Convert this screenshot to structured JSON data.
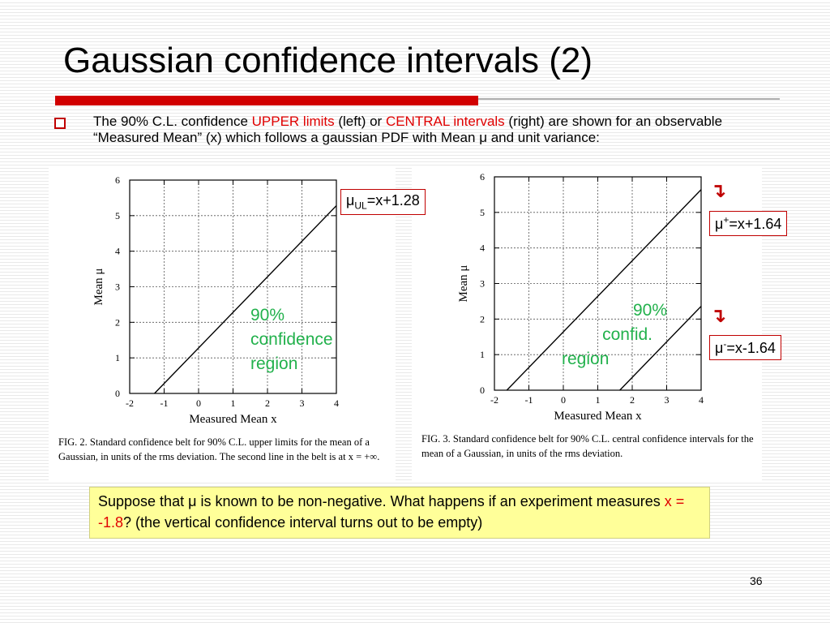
{
  "slide": {
    "title": "Gaussian confidence intervals (2)",
    "page_number": "36"
  },
  "intro": {
    "part1": "The 90% C.L. confidence ",
    "upper_limits": "UPPER limits",
    "part2": " (left) or ",
    "central_intervals": "CENTRAL intervals",
    "part3": " (right) are shown for an observable “Measured Mean” (x) which follows a gaussian PDF with Mean ",
    "mu": "μ",
    "part4": " and unit variance:"
  },
  "left_figure": {
    "equation": {
      "mu": "μ",
      "sub": "UL",
      "rest": "=x+1.28"
    },
    "region_lines": [
      "90%",
      "confidence",
      "region"
    ],
    "caption": "FIG. 2. Standard confidence belt for 90% C.L. upper limits for the mean of a Gaussian, in units of the rms deviation. The second line in the belt is at x = +∞."
  },
  "right_figure": {
    "equation_plus": {
      "mu": "μ",
      "sup": "+",
      "rest": "=x+1.64"
    },
    "equation_minus": {
      "mu": "μ",
      "sup": "-",
      "rest": "=x-1.64"
    },
    "arrow_glyph": "↴",
    "region_lines": [
      "90%",
      "confid.",
      "region"
    ],
    "caption": "FIG. 3. Standard confidence belt for 90% C.L. central confidence intervals for the mean of a Gaussian, in units of the rms deviation."
  },
  "note": {
    "part1": "Suppose that ",
    "mu": "μ",
    "part2": " is known to be non-negative. What happens if an experiment measures ",
    "x_value": "x = -1.8",
    "part3": "? (the vertical confidence interval turns out to be empty)"
  },
  "chart_data": [
    {
      "type": "line",
      "title": "",
      "xlabel": "Measured Mean x",
      "ylabel": "Mean μ",
      "xlim": [
        -2,
        4
      ],
      "ylim": [
        0,
        6
      ],
      "x_ticks": [
        "-2",
        "-1",
        "0",
        "1",
        "2",
        "3",
        "4"
      ],
      "y_ticks": [
        "0",
        "1",
        "2",
        "3",
        "4",
        "5",
        "6"
      ],
      "grid": true,
      "series": [
        {
          "name": "",
          "x": [
            -1.28,
            4
          ],
          "y": [
            0,
            5.28
          ]
        }
      ]
    },
    {
      "type": "line",
      "title": "",
      "xlabel": "Measured Mean x",
      "ylabel": "Mean μ",
      "xlim": [
        -2,
        4
      ],
      "ylim": [
        0,
        6
      ],
      "x_ticks": [
        "-2",
        "-1",
        "0",
        "1",
        "2",
        "3",
        "4"
      ],
      "y_ticks": [
        "0",
        "1",
        "2",
        "3",
        "4",
        "5",
        "6"
      ],
      "grid": true,
      "series": [
        {
          "name": "",
          "x": [
            -1.64,
            4
          ],
          "y": [
            0,
            5.64
          ]
        },
        {
          "name": "",
          "x": [
            1.64,
            4
          ],
          "y": [
            0,
            2.36
          ]
        }
      ]
    }
  ]
}
